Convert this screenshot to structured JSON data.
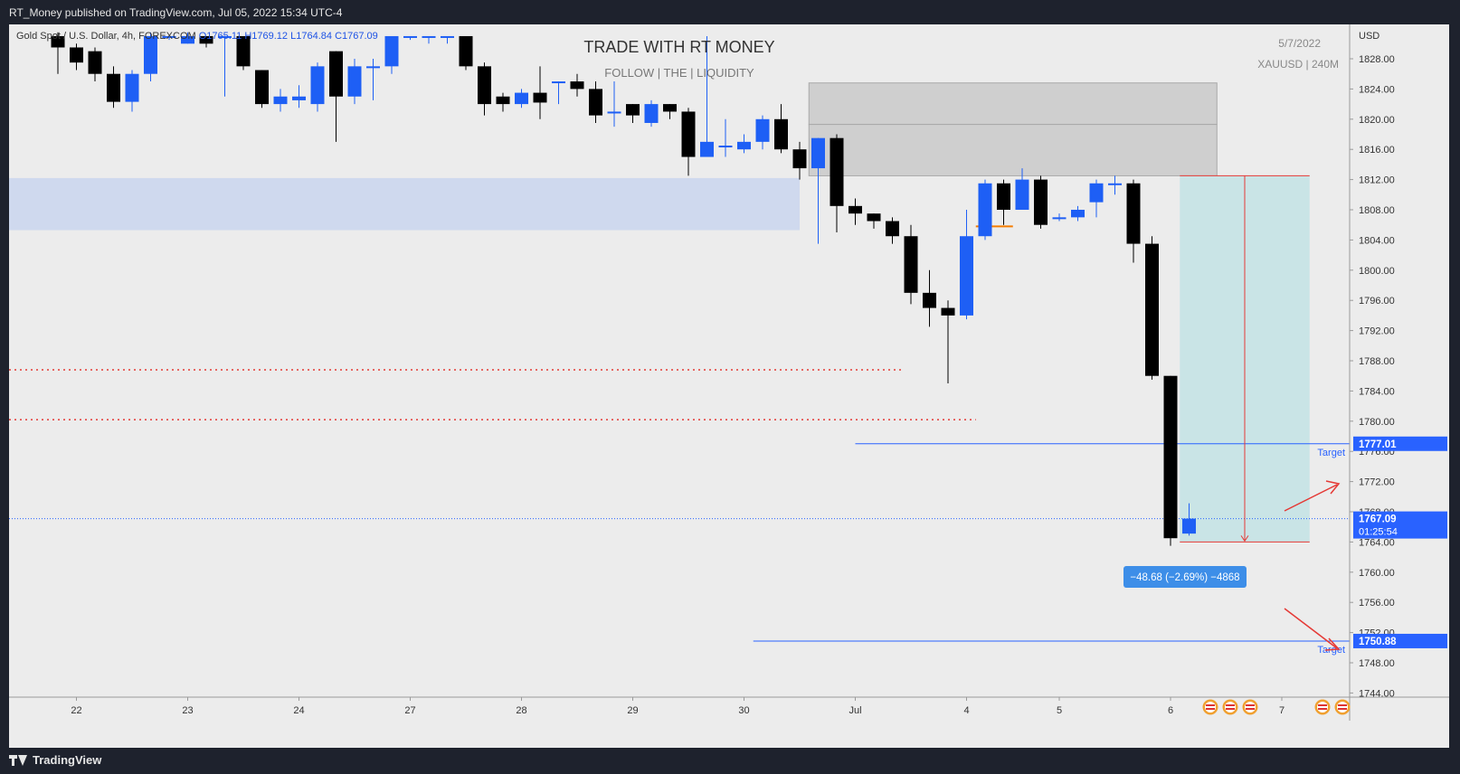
{
  "header": {
    "publisher_text": "RT_Money published on TradingView.com, Jul 05, 2022 15:34 UTC-4"
  },
  "symbol_info": {
    "name": "Gold Spot / U.S. Dollar, 4h, FOREXCOM",
    "open": "O1765.11",
    "high": "H1769.12",
    "low": "L1764.84",
    "close": "C1767.09"
  },
  "watermark": {
    "title": "TRADE WITH RT MONEY",
    "subtitle": "FOLLOW   |  THE  |   LIQUIDITY",
    "date": "5/7/2022",
    "symbol": "XAUUSD  |  240M"
  },
  "footer": {
    "brand": "TradingView"
  },
  "colors": {
    "bull": "#1e5ff5",
    "bear": "#000000",
    "target_line": "#2962ff",
    "stop_line": "#e53935",
    "zone_blue": "#cfd9ee",
    "zone_grey": "#cfcfcf",
    "zone_teal": "#c9e4e6",
    "label_bg": "#2962ff",
    "measure_bg": "#3d8ee8"
  },
  "chart_data": {
    "type": "candlestick",
    "currency": "USD",
    "ylim": [
      1743,
      1831
    ],
    "y_ticks": [
      "1828.00",
      "1824.00",
      "1820.00",
      "1816.00",
      "1812.00",
      "1808.00",
      "1804.00",
      "1800.00",
      "1796.00",
      "1792.00",
      "1788.00",
      "1784.00",
      "1780.00",
      "1776.00",
      "1772.00",
      "1768.00",
      "1764.00",
      "1760.00",
      "1756.00",
      "1752.00",
      "1748.00",
      "1744.00"
    ],
    "x_ticks": [
      "22",
      "23",
      "24",
      "27",
      "28",
      "29",
      "30",
      "Jul",
      "4",
      "5",
      "6",
      "7"
    ],
    "price_labels": [
      {
        "value": 1777.01,
        "text": "1777.01"
      },
      {
        "value": 1767.09,
        "text": "1767.09",
        "sub": "01:25:54"
      },
      {
        "value": 1750.88,
        "text": "1750.88"
      }
    ],
    "target_labels": [
      "Target",
      "Target"
    ],
    "measure_text": "−48.68 (−2.69%) −4868",
    "candles": [
      [
        1831,
        1829.5,
        1831.5,
        1826
      ],
      [
        1829.5,
        1827.5,
        1830,
        1826.5
      ],
      [
        1829,
        1826,
        1829.5,
        1825
      ],
      [
        1826,
        1822.3,
        1827,
        1821.5
      ],
      [
        1822.3,
        1826,
        1826.5,
        1821
      ],
      [
        1826,
        1831,
        1831.5,
        1825
      ],
      [
        1831,
        1831,
        1831,
        1830.5
      ],
      [
        1830,
        1831,
        1831.5,
        1830
      ],
      [
        1831,
        1830,
        1831,
        1829.5
      ],
      [
        1831,
        1831,
        1831,
        1823
      ],
      [
        1831,
        1827,
        1831,
        1826.5
      ],
      [
        1826.5,
        1822,
        1826.5,
        1821.5
      ],
      [
        1822,
        1823,
        1824,
        1821
      ],
      [
        1822.5,
        1823,
        1824.5,
        1821.5
      ],
      [
        1822,
        1827,
        1827.5,
        1821
      ],
      [
        1829,
        1823,
        1829,
        1817
      ],
      [
        1823,
        1827,
        1828,
        1822
      ],
      [
        1827,
        1827,
        1828,
        1822.5
      ],
      [
        1827,
        1831,
        1831,
        1826
      ],
      [
        1831,
        1831,
        1831,
        1830.5
      ],
      [
        1831,
        1831,
        1831,
        1830
      ],
      [
        1831,
        1831,
        1831,
        1830
      ],
      [
        1831,
        1827,
        1831,
        1826.5
      ],
      [
        1827,
        1822,
        1827.5,
        1820.5
      ],
      [
        1823,
        1822,
        1823.5,
        1821
      ],
      [
        1822,
        1823.5,
        1824,
        1821.5
      ],
      [
        1823.5,
        1822.2,
        1827,
        1820
      ],
      [
        1825,
        1825,
        1825,
        1822
      ],
      [
        1825,
        1824,
        1826,
        1823
      ],
      [
        1824,
        1820.5,
        1825,
        1819.5
      ],
      [
        1821,
        1821,
        1825,
        1819
      ],
      [
        1822,
        1820.5,
        1822,
        1819.5
      ],
      [
        1819.5,
        1822,
        1822.5,
        1819
      ],
      [
        1822,
        1821,
        1822,
        1820
      ],
      [
        1821,
        1815,
        1821.5,
        1812.5
      ],
      [
        1815,
        1817,
        1831,
        1815
      ],
      [
        1816.5,
        1816.5,
        1820,
        1815
      ],
      [
        1816,
        1817,
        1818,
        1815.5
      ],
      [
        1817,
        1820,
        1820.5,
        1816
      ],
      [
        1820,
        1816,
        1822,
        1815.5
      ],
      [
        1816,
        1813.5,
        1817,
        1812
      ],
      [
        1813.5,
        1817.5,
        1817.5,
        1803.5
      ],
      [
        1817.5,
        1808.5,
        1818,
        1805
      ],
      [
        1808.5,
        1807.5,
        1809.5,
        1806
      ],
      [
        1807.5,
        1806.5,
        1807.5,
        1805.5
      ],
      [
        1806.5,
        1804.5,
        1807,
        1803.5
      ],
      [
        1804.5,
        1797,
        1806,
        1795.5
      ],
      [
        1797,
        1795,
        1800,
        1792.5
      ],
      [
        1795,
        1794,
        1796,
        1785
      ],
      [
        1794,
        1804.5,
        1808,
        1793.5
      ],
      [
        1804.5,
        1811.5,
        1812,
        1804
      ],
      [
        1811.5,
        1808,
        1812,
        1806
      ],
      [
        1808,
        1812,
        1813.5,
        1808
      ],
      [
        1812,
        1806,
        1812.5,
        1805.5
      ],
      [
        1807,
        1807,
        1807.5,
        1806.5
      ],
      [
        1807,
        1808,
        1808.5,
        1806.5
      ],
      [
        1809,
        1811.5,
        1812,
        1807
      ],
      [
        1811.5,
        1811.5,
        1812.5,
        1810
      ],
      [
        1811.5,
        1803.5,
        1812,
        1801
      ],
      [
        1803.5,
        1786,
        1804.5,
        1785.5
      ],
      [
        1786,
        1764.5,
        1786,
        1763.5
      ],
      [
        1765.11,
        1767.09,
        1769.12,
        1764.84
      ]
    ],
    "zones": [
      {
        "name": "blue-supply",
        "from_index": 0,
        "to_index": 40,
        "top": 1812.2,
        "bottom": 1805.3
      },
      {
        "name": "grey-zone-upper",
        "from_index": 40.5,
        "to_index": 62.5,
        "top": 1824.8,
        "bottom": 1819.3
      },
      {
        "name": "grey-zone-lower",
        "from_index": 40.5,
        "to_index": 62.5,
        "top": 1819.3,
        "bottom": 1812.5
      },
      {
        "name": "position-tp",
        "from_index": 60.5,
        "to_index": 67.5,
        "top": 1812.5,
        "bottom": 1764.0
      }
    ],
    "lines": [
      {
        "name": "target-1",
        "value": 1777.01,
        "from_index": 43,
        "style": "solid"
      },
      {
        "name": "target-2",
        "value": 1750.88,
        "from_index": 37.5,
        "style": "solid"
      },
      {
        "name": "red-dotted-1",
        "value": 1786.8,
        "from_index": 0,
        "to_index": 45.5,
        "style": "dotted"
      },
      {
        "name": "red-dotted-2",
        "value": 1780.2,
        "from_index": 0,
        "to_index": 49.5,
        "style": "dotted"
      },
      {
        "name": "current-price",
        "value": 1767.09,
        "from_index": 0,
        "style": "dotted-blue"
      }
    ]
  }
}
